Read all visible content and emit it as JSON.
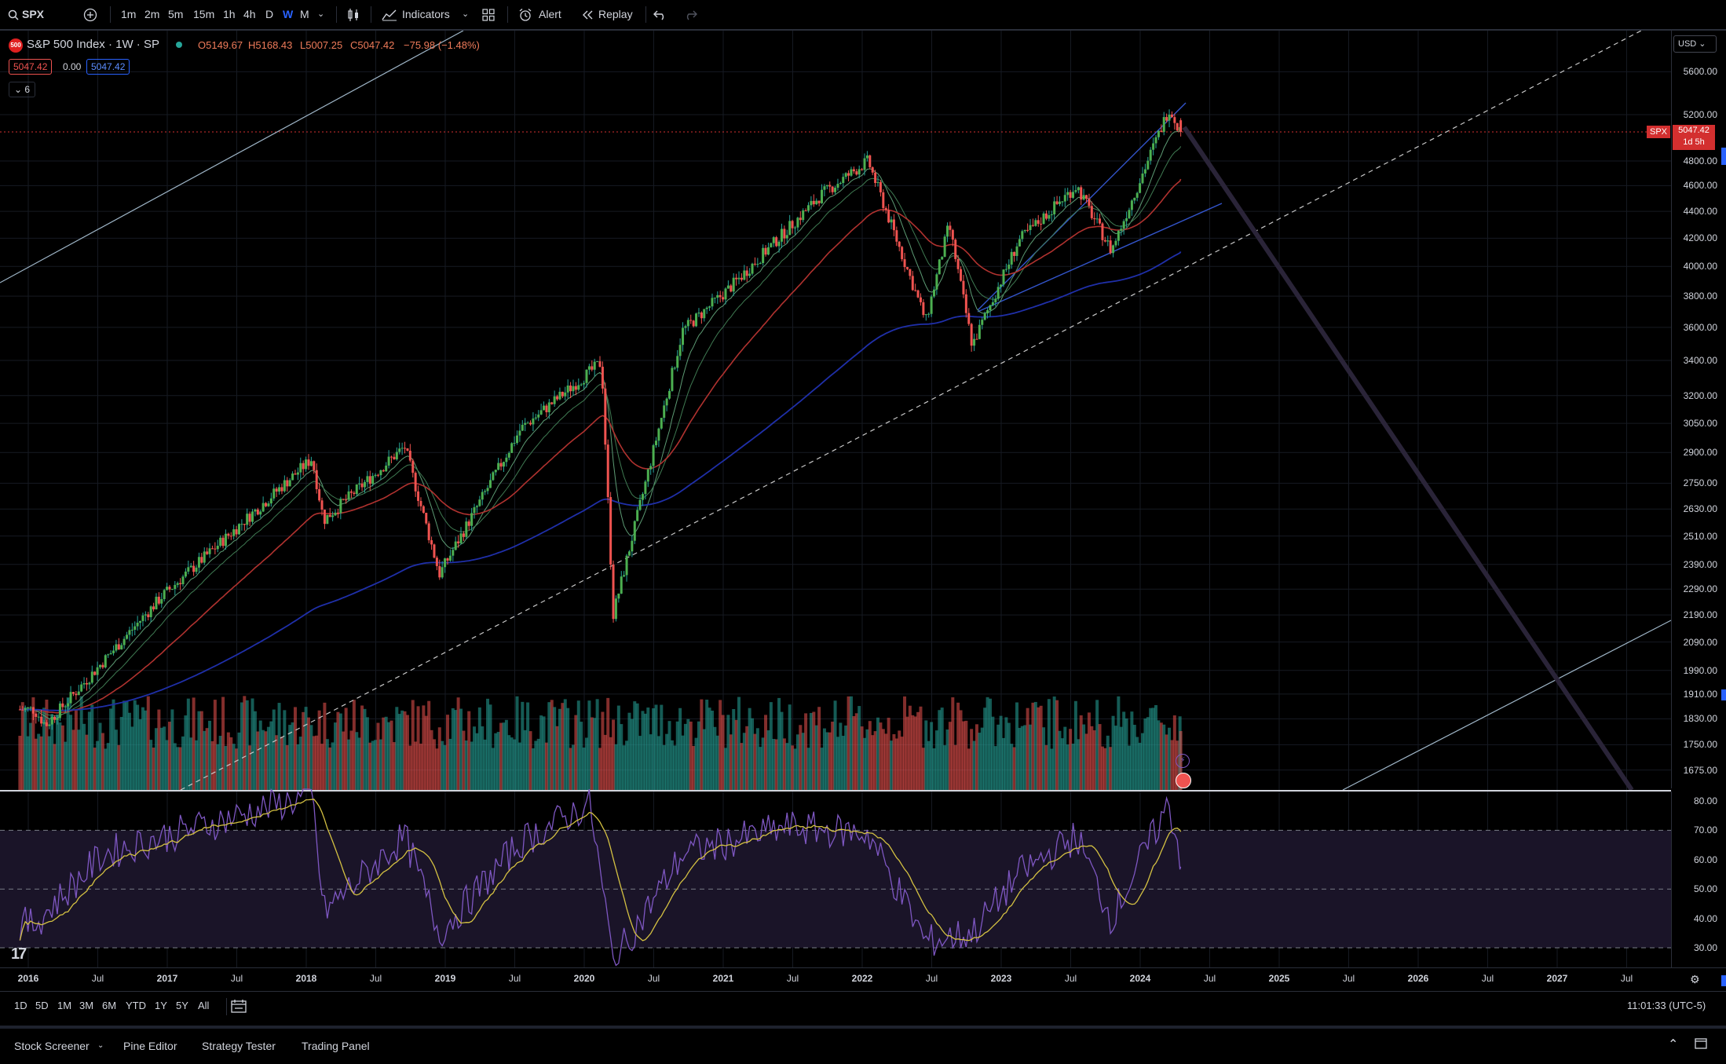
{
  "toolbar": {
    "symbol": "SPX",
    "intervals": [
      "1m",
      "2m",
      "5m",
      "15m",
      "1h",
      "4h",
      "D",
      "W",
      "M"
    ],
    "active_interval": "W",
    "indicators_label": "Indicators",
    "alert_label": "Alert",
    "replay_label": "Replay"
  },
  "legend": {
    "title": "S&P 500 Index · 1W · SP",
    "open": "O5149.67",
    "high": "H5168.43",
    "low": "L5007.25",
    "close": "C5047.42",
    "change": "−75.98 (−1.48%)",
    "pill_bid": "5047.42",
    "pill_spread": "0.00",
    "pill_ask": "5047.42",
    "collapse_count": "6"
  },
  "price_axis": {
    "currency": "USD",
    "labels": [
      "5600.00",
      "5200.00",
      "4800.00",
      "4600.00",
      "4400.00",
      "4200.00",
      "4000.00",
      "3800.00",
      "3600.00",
      "3400.00",
      "3200.00",
      "3050.00",
      "2900.00",
      "2750.00",
      "2630.00",
      "2510.00",
      "2390.00",
      "2290.00",
      "2190.00",
      "2090.00",
      "1990.00",
      "1910.00",
      "1830.00",
      "1750.00",
      "1675.00"
    ],
    "current_symbol": "SPX",
    "current_price": "5047.42",
    "countdown": "1d 5h"
  },
  "rsi_axis": {
    "labels": [
      "80.00",
      "70.00",
      "60.00",
      "50.00",
      "40.00",
      "30.00"
    ]
  },
  "time_axis": {
    "labels": [
      {
        "text": "2016",
        "year": true
      },
      {
        "text": "Jul",
        "year": false
      },
      {
        "text": "2017",
        "year": true
      },
      {
        "text": "Jul",
        "year": false
      },
      {
        "text": "2018",
        "year": true
      },
      {
        "text": "Jul",
        "year": false
      },
      {
        "text": "2019",
        "year": true
      },
      {
        "text": "Jul",
        "year": false
      },
      {
        "text": "2020",
        "year": true
      },
      {
        "text": "Jul",
        "year": false
      },
      {
        "text": "2021",
        "year": true
      },
      {
        "text": "Jul",
        "year": false
      },
      {
        "text": "2022",
        "year": true
      },
      {
        "text": "Jul",
        "year": false
      },
      {
        "text": "2023",
        "year": true
      },
      {
        "text": "Jul",
        "year": false
      },
      {
        "text": "2024",
        "year": true
      },
      {
        "text": "Jul",
        "year": false
      },
      {
        "text": "2025",
        "year": true
      },
      {
        "text": "Jul",
        "year": false
      },
      {
        "text": "2026",
        "year": true
      },
      {
        "text": "Jul",
        "year": false
      },
      {
        "text": "2027",
        "year": true
      },
      {
        "text": "Jul",
        "year": false
      }
    ]
  },
  "range_bar": {
    "ranges": [
      "1D",
      "5D",
      "1M",
      "3M",
      "6M",
      "YTD",
      "1Y",
      "5Y",
      "All"
    ],
    "clock": "11:01:33 (UTC-5)"
  },
  "bottom_panel": {
    "tabs": [
      "Stock Screener",
      "Pine Editor",
      "Strategy Tester",
      "Trading Panel"
    ]
  },
  "colors": {
    "up": "#26a69a",
    "down": "#ef5350",
    "ema_short": "#5d9b74",
    "ema_mid": "#b0322f",
    "ema_long": "#1f2fa8",
    "rsi": "#7e57c2",
    "rsi_ma": "#d4c142",
    "accent": "#2962ff"
  },
  "chart_data": {
    "type": "candlestick",
    "symbol": "SPX",
    "interval": "1W",
    "last": {
      "open": 5149.67,
      "high": 5168.43,
      "low": 5007.25,
      "close": 5047.42,
      "change": -75.98,
      "change_pct": -1.48
    },
    "key_points": [
      {
        "date": "2016-01",
        "price": 1860
      },
      {
        "date": "2016-02",
        "price": 1810
      },
      {
        "date": "2016-12",
        "price": 2260
      },
      {
        "date": "2018-01",
        "price": 2870
      },
      {
        "date": "2018-02",
        "price": 2580
      },
      {
        "date": "2018-09",
        "price": 2930
      },
      {
        "date": "2018-12",
        "price": 2350
      },
      {
        "date": "2019-07",
        "price": 3020
      },
      {
        "date": "2020-02",
        "price": 3390
      },
      {
        "date": "2020-03",
        "price": 2190
      },
      {
        "date": "2020-09",
        "price": 3580
      },
      {
        "date": "2021-01",
        "price": 3850
      },
      {
        "date": "2021-09",
        "price": 4530
      },
      {
        "date": "2022-01",
        "price": 4800
      },
      {
        "date": "2022-06",
        "price": 3640
      },
      {
        "date": "2022-08",
        "price": 4300
      },
      {
        "date": "2022-10",
        "price": 3490
      },
      {
        "date": "2023-02",
        "price": 4180
      },
      {
        "date": "2023-07",
        "price": 4600
      },
      {
        "date": "2023-10",
        "price": 4110
      },
      {
        "date": "2024-03",
        "price": 5260
      },
      {
        "date": "2024-04",
        "price": 5047
      }
    ],
    "rsi_key_points": [
      {
        "date": "2016-01",
        "value": 38
      },
      {
        "date": "2016-07",
        "value": 62
      },
      {
        "date": "2018-01",
        "value": 82
      },
      {
        "date": "2018-02",
        "value": 42
      },
      {
        "date": "2018-09",
        "value": 68
      },
      {
        "date": "2018-12",
        "value": 35
      },
      {
        "date": "2019-07",
        "value": 66
      },
      {
        "date": "2020-01",
        "value": 79
      },
      {
        "date": "2020-03",
        "value": 25
      },
      {
        "date": "2020-09",
        "value": 62
      },
      {
        "date": "2021-06",
        "value": 71
      },
      {
        "date": "2022-01",
        "value": 69
      },
      {
        "date": "2022-06",
        "value": 32
      },
      {
        "date": "2022-10",
        "value": 35
      },
      {
        "date": "2023-02",
        "value": 55
      },
      {
        "date": "2023-07",
        "value": 68
      },
      {
        "date": "2023-10",
        "value": 40
      },
      {
        "date": "2024-03",
        "value": 79
      },
      {
        "date": "2024-04",
        "value": 60
      }
    ],
    "rsi_levels": [
      70,
      50,
      30
    ],
    "log_scale": true,
    "ylim": [
      1640,
      5800
    ]
  }
}
